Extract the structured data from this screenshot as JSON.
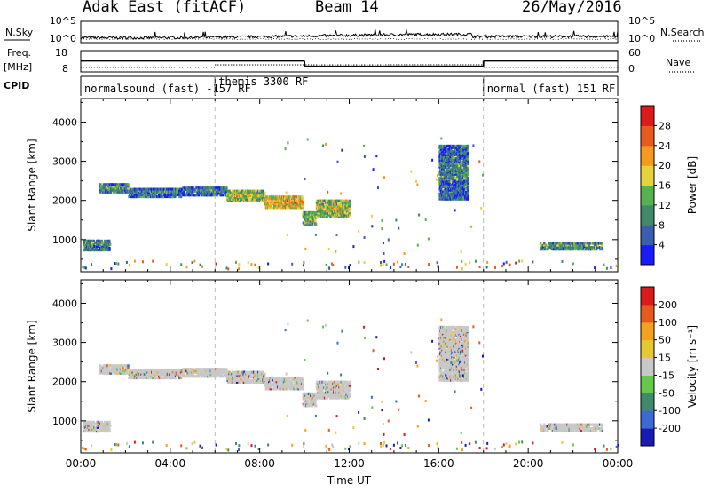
{
  "header": {
    "station": "Adak East (fitACF)",
    "beam": "Beam 14",
    "date": "26/May/2016"
  },
  "noise_panel": {
    "left_label": "N.Sky",
    "right_label": "N.Search",
    "left_ticks": [
      "10^5",
      "10^0"
    ],
    "right_ticks": [
      "10^5",
      "10^0"
    ]
  },
  "freq_panel": {
    "left_label_top": "Freq.",
    "left_label_bottom": "[MHz]",
    "right_label": "Nave",
    "left_ticks": [
      "18",
      "8"
    ],
    "right_ticks": [
      "60",
      "0"
    ],
    "freq_segments": [
      {
        "from": 0,
        "to": 10,
        "mhz": 13.2
      },
      {
        "from": 10,
        "to": 18,
        "mhz": 10.6
      },
      {
        "from": 18,
        "to": 24,
        "mhz": 13.2
      }
    ],
    "nave_segments": [
      {
        "from": 0,
        "to": 6,
        "n": 13
      },
      {
        "from": 6,
        "to": 18,
        "n": 20
      },
      {
        "from": 18,
        "to": 24,
        "n": 13
      }
    ]
  },
  "cpid_panel": {
    "label": "CPID",
    "segments": [
      {
        "from": 0,
        "to": 6,
        "label": "normalsound (fast) -157 RF"
      },
      {
        "from": 6,
        "to": 18,
        "label": "themis 3300 RF"
      },
      {
        "from": 18,
        "to": 24,
        "label": "normal (fast) 151 RF"
      }
    ]
  },
  "time_axis": {
    "title": "Time UT",
    "ticks": [
      "00:00",
      "04:00",
      "08:00",
      "12:00",
      "16:00",
      "20:00",
      "00:00"
    ]
  },
  "chart_data": [
    {
      "type": "heatmap",
      "xlabel": "",
      "ylabel": "Slant Range [km]",
      "xlim": [
        0,
        24
      ],
      "ylim": [
        180,
        4600
      ],
      "yticks": [
        "1000",
        "2000",
        "3000",
        "4000"
      ],
      "colorbar": {
        "label": "Power [dB]",
        "ticks": [
          "4",
          "8",
          "12",
          "16",
          "20",
          "24",
          "28"
        ],
        "colors": [
          "#1a1aff",
          "#3a5fb0",
          "#3e8a6a",
          "#58b050",
          "#e6d23a",
          "#f59a1e",
          "#e85a1e",
          "#dd1a1a"
        ]
      },
      "echo_regions": [
        {
          "t0": 0.8,
          "t1": 2.1,
          "r0": 2180,
          "r1": 2420,
          "level": 0.25
        },
        {
          "t0": 2.1,
          "t1": 4.5,
          "r0": 2060,
          "r1": 2300,
          "level": 0.2
        },
        {
          "t0": 4.5,
          "t1": 6.5,
          "r0": 2100,
          "r1": 2330,
          "level": 0.2
        },
        {
          "t0": 6.5,
          "t1": 8.2,
          "r0": 1950,
          "r1": 2250,
          "level": 0.45
        },
        {
          "t0": 8.2,
          "t1": 9.9,
          "r0": 1780,
          "r1": 2100,
          "level": 0.6
        },
        {
          "t0": 9.9,
          "t1": 10.5,
          "r0": 1350,
          "r1": 1700,
          "level": 0.35
        },
        {
          "t0": 10.5,
          "t1": 12.0,
          "r0": 1550,
          "r1": 2000,
          "level": 0.45
        },
        {
          "t0": 0.1,
          "t1": 1.3,
          "r0": 700,
          "r1": 980,
          "level": 0.25
        },
        {
          "t0": 20.5,
          "t1": 23.3,
          "r0": 720,
          "r1": 920,
          "level": 0.3
        },
        {
          "t0": 16.0,
          "t1": 17.3,
          "r0": 2000,
          "r1": 3400,
          "level": 0.2
        }
      ]
    },
    {
      "type": "heatmap",
      "xlabel": "Time UT",
      "ylabel": "Slant Range [km]",
      "xlim": [
        0,
        24
      ],
      "ylim": [
        180,
        4600
      ],
      "yticks": [
        "1000",
        "2000",
        "3000",
        "4000"
      ],
      "colorbar": {
        "label": "Velocity [m s⁻¹]",
        "ticks": [
          "200",
          "100",
          "50",
          "15",
          "-15",
          "-50",
          "-100",
          "-200"
        ],
        "colors": [
          "#1a1ab4",
          "#3a6ad2",
          "#3e8a6a",
          "#64c84a",
          "#c8c8c8",
          "#e6c832",
          "#f5a01e",
          "#e65a1e",
          "#dd1a1a"
        ]
      },
      "echo_regions": [
        {
          "t0": 0.8,
          "t1": 2.1,
          "r0": 2180,
          "r1": 2420,
          "level": 0.5
        },
        {
          "t0": 2.1,
          "t1": 4.5,
          "r0": 2060,
          "r1": 2300,
          "level": 0.5
        },
        {
          "t0": 4.5,
          "t1": 6.5,
          "r0": 2100,
          "r1": 2330,
          "level": 0.5
        },
        {
          "t0": 6.5,
          "t1": 8.2,
          "r0": 1950,
          "r1": 2250,
          "level": 0.5
        },
        {
          "t0": 8.2,
          "t1": 9.9,
          "r0": 1780,
          "r1": 2100,
          "level": 0.5
        },
        {
          "t0": 9.9,
          "t1": 10.5,
          "r0": 1350,
          "r1": 1700,
          "level": 0.5
        },
        {
          "t0": 10.5,
          "t1": 12.0,
          "r0": 1550,
          "r1": 2000,
          "level": 0.5
        },
        {
          "t0": 0.1,
          "t1": 1.3,
          "r0": 700,
          "r1": 980,
          "level": 0.5
        },
        {
          "t0": 20.5,
          "t1": 23.3,
          "r0": 720,
          "r1": 920,
          "level": 0.5
        },
        {
          "t0": 16.0,
          "t1": 17.3,
          "r0": 2000,
          "r1": 3400,
          "level": 0.5
        }
      ]
    }
  ]
}
